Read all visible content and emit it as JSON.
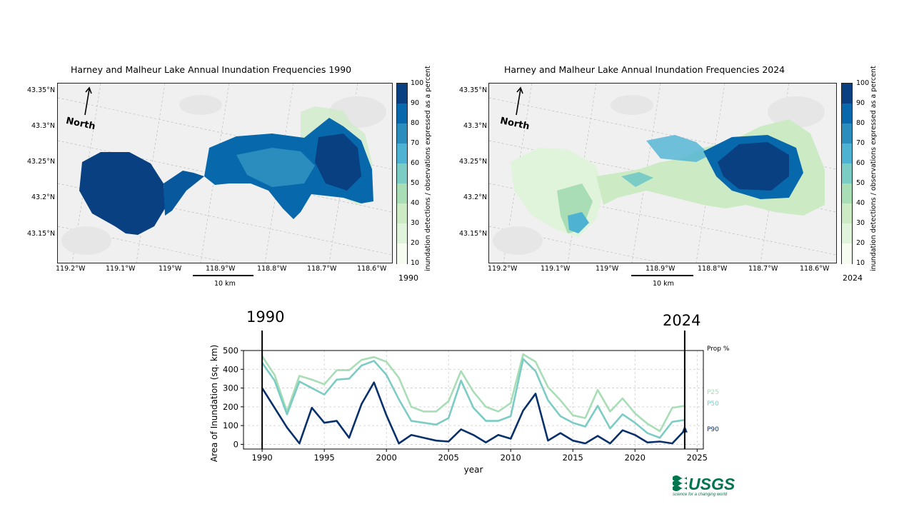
{
  "maps": [
    {
      "title": "Harney and Malheur Lake Annual Inundation Frequencies 1990",
      "year_tag": "1990",
      "north_label": "North",
      "scale_label": "10 km",
      "lat_ticks": [
        "43.35°N",
        "43.3°N",
        "43.25°N",
        "43.2°N",
        "43.15°N"
      ],
      "lon_ticks": [
        "119.2°W",
        "119.1°W",
        "119°W",
        "118.9°W",
        "118.8°W",
        "118.7°W",
        "118.6°W"
      ]
    },
    {
      "title": "Harney and Malheur Lake Annual Inundation Frequencies  2024",
      "year_tag": "2024",
      "north_label": "North",
      "scale_label": "10 km",
      "lat_ticks": [
        "43.35°N",
        "43.3°N",
        "43.25°N",
        "43.2°N",
        "43.15°N"
      ],
      "lon_ticks": [
        "119.2°W",
        "119.1°W",
        "119°W",
        "118.9°W",
        "118.8°W",
        "118.7°W",
        "118.6°W"
      ]
    }
  ],
  "colorbar": {
    "label": "inundation detections / observations expressed as a percent",
    "ticks": [
      "100",
      "90",
      "80",
      "70",
      "60",
      "50",
      "40",
      "30",
      "20",
      "10"
    ],
    "colors": [
      "#084081",
      "#0868ac",
      "#2b8cbe",
      "#4eb3d3",
      "#7bccc4",
      "#a8ddb5",
      "#ccebc5",
      "#e0f3db",
      "#f7fcf0"
    ]
  },
  "chart_data": {
    "type": "line",
    "xlabel": "year",
    "ylabel": "Area of Inundation (sq. km)",
    "xlim": [
      1988.5,
      2025.5
    ],
    "ylim": [
      -25,
      500
    ],
    "x_ticks": [
      1990,
      1995,
      2000,
      2005,
      2010,
      2015,
      2020,
      2025
    ],
    "y_ticks": [
      0,
      100,
      200,
      300,
      400,
      500
    ],
    "legend_title": "Prop %",
    "annotations": [
      "1990",
      "2024"
    ],
    "annotation_years": [
      1990,
      2024
    ],
    "x": [
      1990,
      1991,
      1992,
      1993,
      1994,
      1995,
      1996,
      1997,
      1998,
      1999,
      2000,
      2001,
      2002,
      2003,
      2004,
      2005,
      2006,
      2007,
      2008,
      2009,
      2010,
      2011,
      2012,
      2013,
      2014,
      2015,
      2016,
      2017,
      2018,
      2019,
      2020,
      2021,
      2022,
      2023,
      2024
    ],
    "series": [
      {
        "name": "P25",
        "color": "#a8ddb5",
        "values": [
          470,
          370,
          175,
          365,
          345,
          320,
          395,
          395,
          450,
          465,
          440,
          355,
          200,
          175,
          175,
          230,
          390,
          280,
          200,
          175,
          220,
          480,
          440,
          305,
          235,
          155,
          140,
          290,
          175,
          245,
          165,
          110,
          70,
          195,
          205
        ]
      },
      {
        "name": "P50",
        "color": "#7bccc4",
        "values": [
          435,
          340,
          160,
          335,
          300,
          265,
          345,
          350,
          420,
          445,
          370,
          240,
          125,
          115,
          105,
          140,
          340,
          195,
          125,
          125,
          150,
          455,
          390,
          235,
          150,
          115,
          95,
          205,
          85,
          160,
          115,
          60,
          35,
          120,
          130
        ]
      },
      {
        "name": "P90",
        "color": "#08306b",
        "values": [
          300,
          195,
          90,
          5,
          195,
          115,
          125,
          35,
          215,
          330,
          155,
          5,
          50,
          35,
          20,
          15,
          80,
          50,
          10,
          50,
          30,
          180,
          270,
          20,
          60,
          20,
          5,
          45,
          5,
          75,
          50,
          10,
          15,
          5,
          75
        ]
      }
    ]
  },
  "logo": {
    "text": "USGS",
    "tagline": "science for a changing world",
    "color": "#00764e"
  }
}
